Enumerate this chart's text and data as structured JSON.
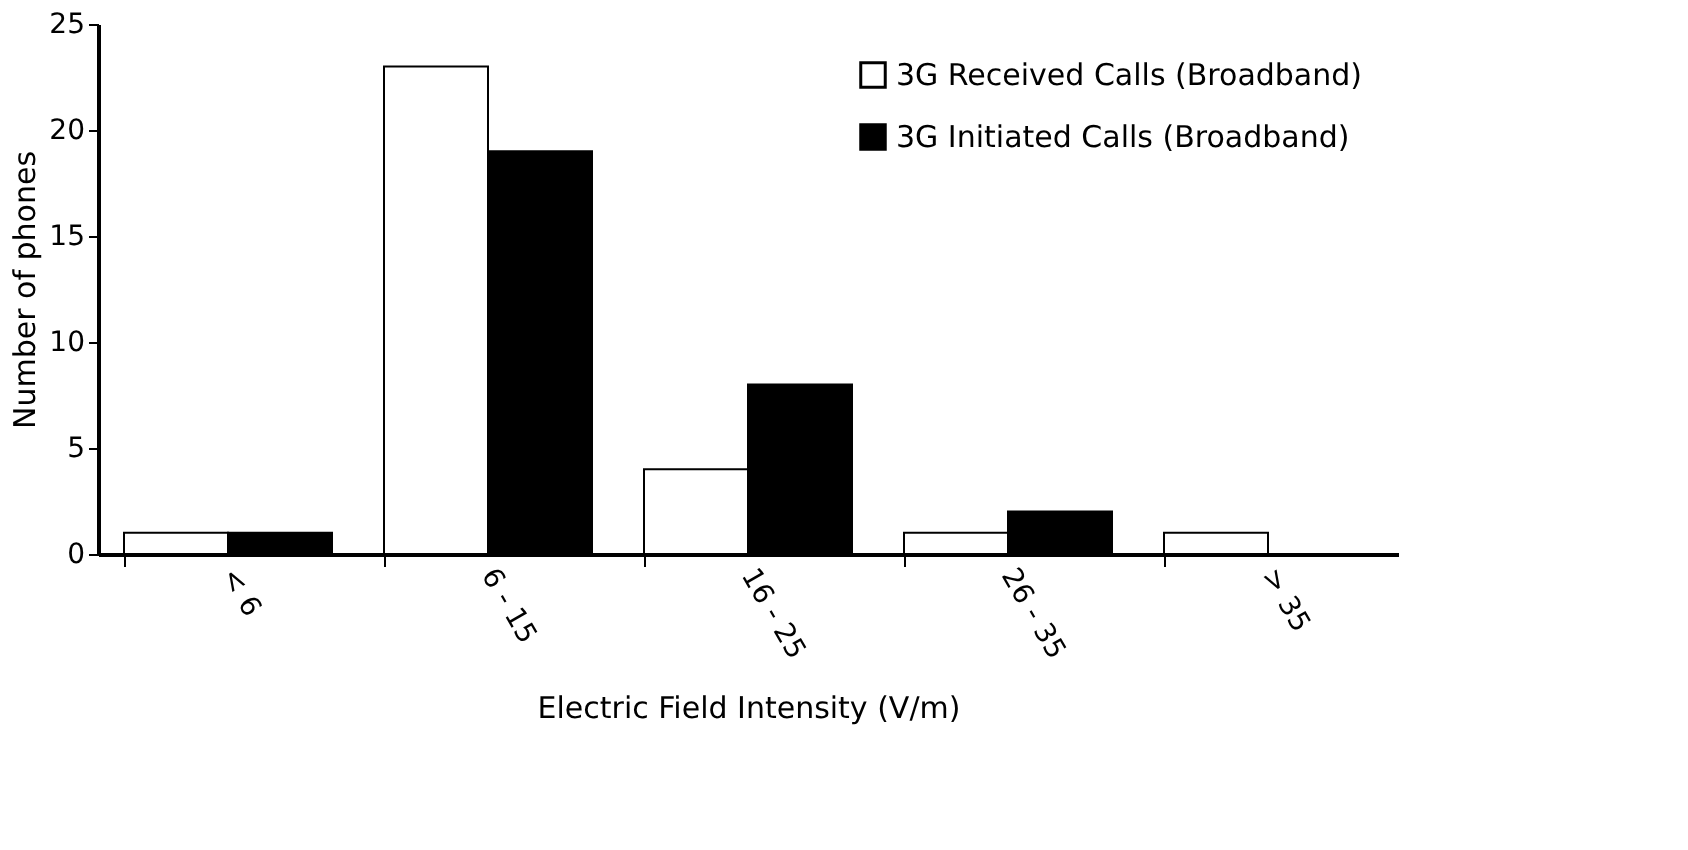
{
  "chart_data": {
    "type": "bar",
    "xlabel": "Electric Field Intensity (V/m)",
    "ylabel": "Number of phones",
    "categories": [
      "< 6",
      "6 - 15",
      "16 - 25",
      "26 - 35",
      "> 35"
    ],
    "series": [
      {
        "name": "3G Received Calls (Broadband)",
        "color": "#ffffff",
        "values": [
          1,
          23,
          4,
          1,
          1
        ]
      },
      {
        "name": "3G Initiated Calls (Broadband)",
        "color": "#000000",
        "values": [
          1,
          19,
          8,
          2,
          0
        ]
      }
    ],
    "ylim": [
      0,
      25
    ],
    "yticks": [
      0,
      5,
      10,
      15,
      20,
      25
    ],
    "grid": false,
    "legend": "top right"
  }
}
